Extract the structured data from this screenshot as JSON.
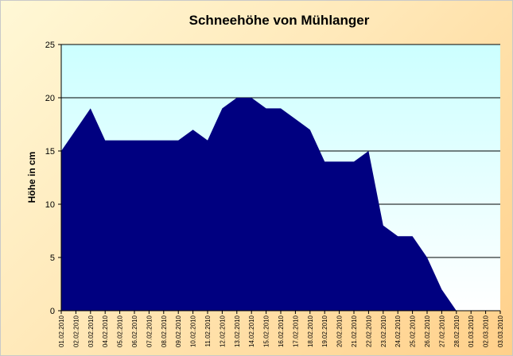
{
  "colors": {
    "plot_top": "#ccffff",
    "plot_bottom": "#ffffff",
    "area_fill": "#000080",
    "gridline": "#000000",
    "axis": "#000000"
  },
  "chart_data": {
    "type": "area",
    "title": "Schneehöhe von Mühlanger",
    "xlabel": "",
    "ylabel": "Höhe in cm",
    "ylim": [
      0,
      25
    ],
    "yticks": [
      "0",
      "5",
      "10",
      "15",
      "20",
      "25"
    ],
    "grid": true,
    "legend": "none",
    "x": [
      "01.02.2010",
      "02.02.2010",
      "03.02.2010",
      "04.02.2010",
      "05.02.2010",
      "06.02.2010",
      "07.02.2010",
      "08.02.2010",
      "09.02.2010",
      "10.02.2010",
      "11.02.2010",
      "12.02.2010",
      "13.02.2010",
      "14.02.2010",
      "15.02.2010",
      "16.02.2010",
      "17.02.2010",
      "18.02.2010",
      "19.02.2010",
      "20.02.2010",
      "21.02.2010",
      "22.02.2010",
      "23.02.2010",
      "24.02.2010",
      "25.02.2010",
      "26.02.2010",
      "27.02.2010",
      "28.02.2010",
      "01.03.2010",
      "02.03.2010",
      "03.03.2010"
    ],
    "series": [
      {
        "values": [
          15,
          17,
          19,
          16,
          16,
          16,
          16,
          16,
          16,
          17,
          16,
          19,
          20,
          20,
          19,
          19,
          18,
          17,
          14,
          14,
          14,
          15,
          8,
          7,
          7,
          5,
          2,
          0,
          0,
          0,
          0
        ]
      }
    ]
  }
}
